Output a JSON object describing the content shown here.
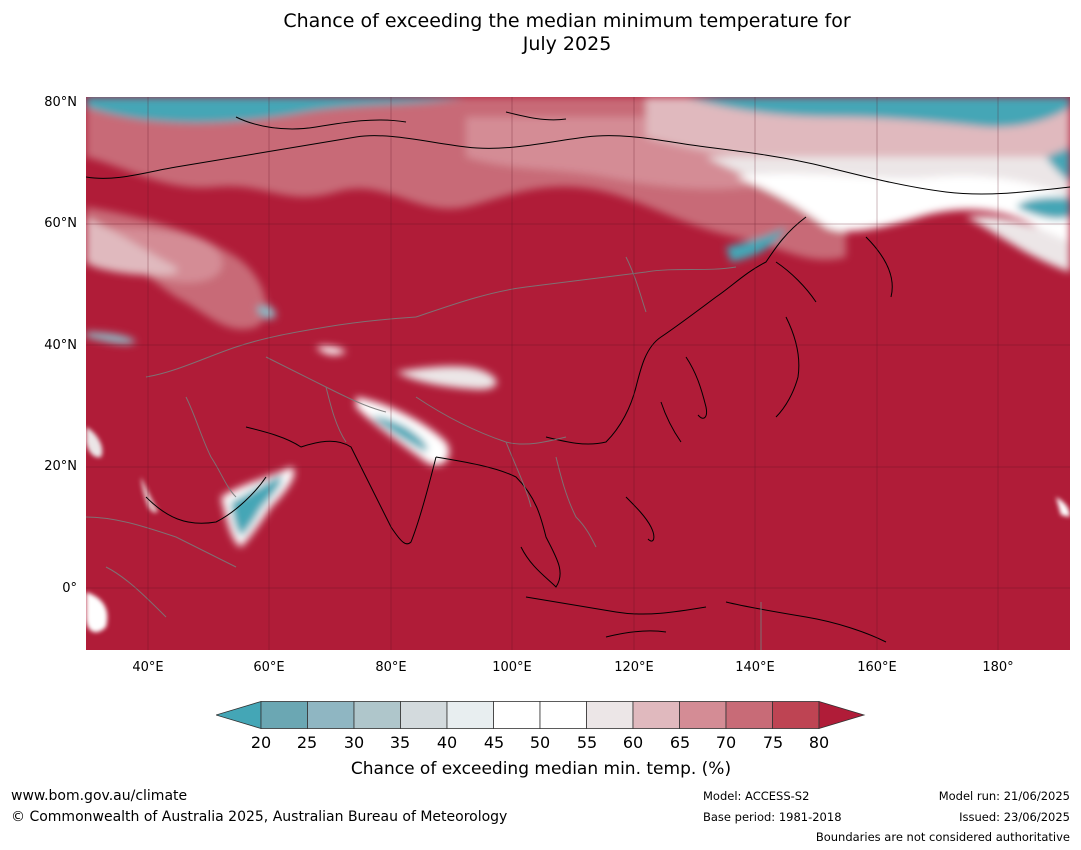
{
  "title_line1": "Chance of exceeding the median minimum temperature for",
  "title_line2": "July 2025",
  "lat_labels": [
    "80°N",
    "60°N",
    "40°N",
    "20°N",
    "0°"
  ],
  "lon_labels": [
    "40°E",
    "60°E",
    "80°E",
    "100°E",
    "120°E",
    "140°E",
    "160°E",
    "180°"
  ],
  "colorbar": {
    "ticks": [
      "20",
      "25",
      "30",
      "35",
      "40",
      "45",
      "50",
      "55",
      "60",
      "65",
      "70",
      "75",
      "80"
    ],
    "colors": [
      "#44a6b6",
      "#6ba7b3",
      "#8fb6c2",
      "#afc6cb",
      "#d3dadd",
      "#e8eef0",
      "#ffffff",
      "#ffffff",
      "#ece6e7",
      "#e0b9be",
      "#d48c95",
      "#c86b77",
      "#be4453",
      "#b01c38"
    ],
    "label": "Chance of exceeding median min. temp. (%)"
  },
  "footer": {
    "url": "www.bom.gov.au/climate",
    "copyright": "© Commonwealth of Australia 2025, Australian Bureau of Meteorology",
    "model": "Model: ACCESS-S2",
    "base_period": "Base period: 1981-2018",
    "model_run": "Model run: 21/06/2025",
    "issued": "Issued: 23/06/2025",
    "disclaimer": "Boundaries are not considered authoritative"
  }
}
